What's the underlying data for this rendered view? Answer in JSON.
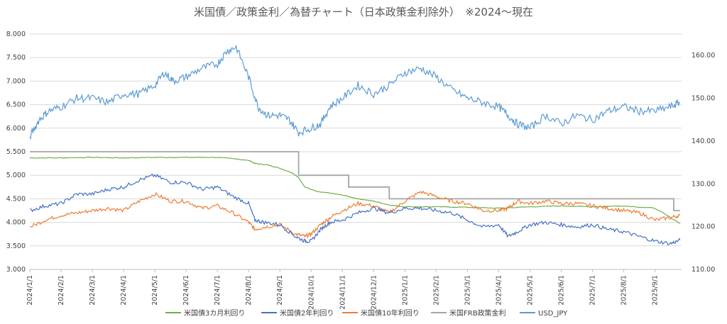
{
  "chart_data": {
    "type": "line",
    "title": "米国債／政策金利／為替チャート（日本政策金利除外）　※2024～現在",
    "y_left": {
      "ticks": [
        "3.000",
        "3.500",
        "4.000",
        "4.500",
        "5.000",
        "5.500",
        "6.000",
        "6.500",
        "7.000",
        "7.500",
        "8.000"
      ],
      "range": [
        3.0,
        8.0
      ]
    },
    "y_right": {
      "ticks": [
        "110.00",
        "120.00",
        "130.00",
        "140.00",
        "150.00",
        "160.00"
      ],
      "range": [
        110,
        165
      ]
    },
    "x_labels": [
      "2024/1/1",
      "2024/2/1",
      "2024/3/1",
      "2024/4/1",
      "2024/5/1",
      "2024/6/1",
      "2024/7/1",
      "2024/8/1",
      "2024/9/1",
      "2024/10/1",
      "2024/11/1",
      "2024/12/1",
      "2025/1/1",
      "2025/2/1",
      "2025/3/1",
      "2025/4/1",
      "2025/5/1",
      "2025/6/1",
      "2025/7/1",
      "2025/8/1",
      "2025/9/1"
    ],
    "grid": "horizontal",
    "legend_position": "bottom",
    "series": [
      {
        "name": "米国債3カ月利回り",
        "axis": "left",
        "color": "#70ad47",
        "t": [
          0,
          1,
          2,
          3,
          4,
          5,
          6,
          7,
          7.2,
          7.6,
          8,
          8.4,
          8.6,
          8.8,
          9.2,
          9.6,
          10,
          10.5,
          11,
          11.5,
          12,
          13,
          14,
          15,
          16,
          17,
          18,
          19,
          20,
          20.8
        ],
        "v": [
          5.37,
          5.37,
          5.38,
          5.37,
          5.38,
          5.38,
          5.38,
          5.32,
          5.25,
          5.22,
          5.15,
          5.05,
          4.95,
          4.75,
          4.65,
          4.62,
          4.58,
          4.5,
          4.45,
          4.37,
          4.33,
          4.33,
          4.32,
          4.3,
          4.33,
          4.35,
          4.33,
          4.35,
          4.3,
          3.98
        ]
      },
      {
        "name": "米国債2年利回り",
        "axis": "left",
        "color": "#4472c4",
        "t": [
          0,
          0.5,
          1,
          1.5,
          2,
          2.5,
          3,
          3.5,
          4,
          4.5,
          5,
          5.5,
          6,
          6.5,
          7,
          7.2,
          7.5,
          8,
          8.5,
          8.8,
          9,
          9.3,
          9.6,
          10,
          10.5,
          11,
          11.5,
          12,
          12.5,
          13,
          13.5,
          14,
          14.5,
          15,
          15.3,
          15.6,
          16,
          16.5,
          17,
          17.5,
          18,
          18.5,
          19,
          19.5,
          20,
          20.5,
          20.8
        ],
        "v": [
          4.25,
          4.35,
          4.4,
          4.6,
          4.6,
          4.7,
          4.75,
          4.9,
          5.0,
          4.85,
          4.85,
          4.7,
          4.75,
          4.55,
          4.4,
          4.05,
          4.0,
          3.95,
          3.7,
          3.6,
          3.6,
          3.85,
          4.0,
          4.05,
          4.2,
          4.3,
          4.2,
          4.3,
          4.3,
          4.25,
          4.2,
          4.05,
          3.9,
          3.95,
          3.7,
          3.8,
          3.95,
          4.0,
          3.95,
          3.9,
          3.95,
          3.85,
          3.8,
          3.7,
          3.6,
          3.55,
          3.62
        ]
      },
      {
        "name": "米国債10年利回り",
        "axis": "left",
        "color": "#ed7d31",
        "t": [
          0,
          0.5,
          1,
          1.5,
          2,
          2.5,
          3,
          3.5,
          4,
          4.5,
          5,
          5.5,
          6,
          6.5,
          7,
          7.2,
          7.5,
          8,
          8.5,
          8.8,
          9,
          9.3,
          9.6,
          10,
          10.5,
          11,
          11.5,
          12,
          12.5,
          13,
          13.5,
          14,
          14.5,
          15,
          15.3,
          15.6,
          16,
          16.5,
          17,
          17.5,
          18,
          18.5,
          19,
          19.5,
          20,
          20.5,
          20.8
        ],
        "v": [
          3.9,
          4.05,
          4.15,
          4.2,
          4.25,
          4.3,
          4.25,
          4.45,
          4.6,
          4.45,
          4.45,
          4.3,
          4.35,
          4.2,
          4.0,
          3.85,
          3.9,
          3.95,
          3.75,
          3.7,
          3.75,
          3.95,
          4.1,
          4.25,
          4.4,
          4.35,
          4.2,
          4.45,
          4.65,
          4.55,
          4.45,
          4.4,
          4.25,
          4.25,
          4.3,
          4.45,
          4.4,
          4.45,
          4.4,
          4.4,
          4.35,
          4.3,
          4.25,
          4.2,
          4.05,
          4.1,
          4.15
        ]
      },
      {
        "name": "米国FRB政策金利",
        "axis": "left",
        "color": "#a5a5a5",
        "step": true,
        "t": [
          0,
          8.6,
          8.6,
          10.2,
          10.2,
          11.5,
          11.5,
          20.6,
          20.6,
          20.8
        ],
        "v": [
          5.5,
          5.5,
          5.0,
          5.0,
          4.75,
          4.75,
          4.5,
          4.5,
          4.25,
          4.25
        ]
      },
      {
        "name": "USD_JPY",
        "axis": "right",
        "color": "#5b9bd5",
        "t": [
          0,
          0.3,
          0.6,
          1,
          1.5,
          2,
          2.5,
          3,
          3.5,
          4,
          4.3,
          4.6,
          5,
          5.5,
          6,
          6.3,
          6.6,
          7,
          7.3,
          7.6,
          8,
          8.3,
          8.6,
          9,
          9.3,
          9.6,
          10,
          10.5,
          11,
          11.5,
          12,
          12.5,
          13,
          13.5,
          14,
          14.5,
          15,
          15.3,
          15.6,
          16,
          16.5,
          17,
          17.5,
          18,
          18.5,
          19,
          19.5,
          20,
          20.5,
          20.8
        ],
        "v": [
          141,
          145,
          147,
          148,
          150,
          150,
          149,
          151,
          151,
          153,
          156,
          154,
          155,
          157,
          158,
          161,
          162,
          155,
          148,
          146,
          146,
          145,
          142,
          143,
          144,
          148,
          150,
          153,
          151,
          153,
          156,
          157,
          155,
          152,
          150,
          149,
          148,
          146,
          144,
          143,
          146,
          144,
          146,
          145,
          147,
          148,
          147,
          147,
          148,
          149
        ]
      }
    ]
  }
}
